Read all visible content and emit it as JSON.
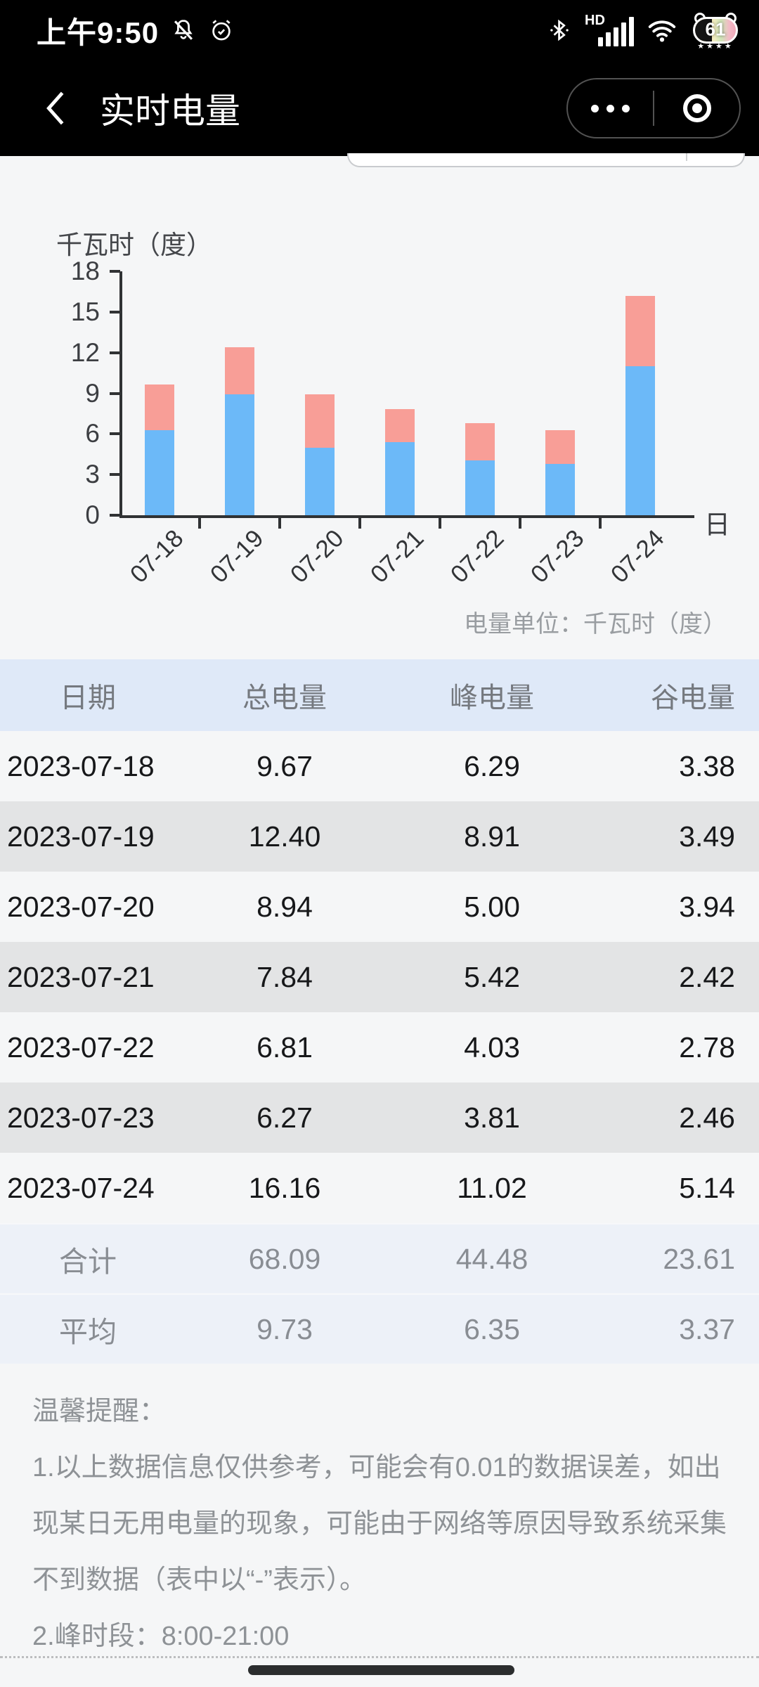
{
  "status_bar": {
    "time": "上午9:50",
    "hd_label": "HD",
    "battery_percent": "61",
    "battery_stars": "★★★★"
  },
  "nav": {
    "title": "实时电量"
  },
  "chart_data": {
    "type": "bar",
    "stacked": true,
    "title": "千瓦时（度）",
    "xlabel": "日",
    "categories": [
      "07-18",
      "07-19",
      "07-20",
      "07-21",
      "07-22",
      "07-23",
      "07-24"
    ],
    "series": [
      {
        "name": "峰电量",
        "color": "#6cb9f8",
        "values": [
          6.29,
          8.91,
          5.0,
          5.42,
          4.03,
          3.81,
          11.02
        ]
      },
      {
        "name": "谷电量",
        "color": "#f89e97",
        "values": [
          3.38,
          3.49,
          3.94,
          2.42,
          2.78,
          2.46,
          5.14
        ]
      }
    ],
    "ylim": [
      0,
      18
    ],
    "yticks": [
      0,
      3,
      6,
      9,
      12,
      15,
      18
    ],
    "grid": false,
    "legend_position": "none"
  },
  "unit_note": "电量单位：千瓦时（度）",
  "table": {
    "headers": [
      "日期",
      "总电量",
      "峰电量",
      "谷电量"
    ],
    "rows": [
      [
        "2023-07-18",
        "9.67",
        "6.29",
        "3.38"
      ],
      [
        "2023-07-19",
        "12.40",
        "8.91",
        "3.49"
      ],
      [
        "2023-07-20",
        "8.94",
        "5.00",
        "3.94"
      ],
      [
        "2023-07-21",
        "7.84",
        "5.42",
        "2.42"
      ],
      [
        "2023-07-22",
        "6.81",
        "4.03",
        "2.78"
      ],
      [
        "2023-07-23",
        "6.27",
        "3.81",
        "2.46"
      ],
      [
        "2023-07-24",
        "16.16",
        "11.02",
        "5.14"
      ]
    ],
    "summary": [
      [
        "合计",
        "68.09",
        "44.48",
        "23.61"
      ],
      [
        "平均",
        "9.73",
        "6.35",
        "3.37"
      ]
    ]
  },
  "notice": {
    "title": "温馨提醒：",
    "items": [
      "1.以上数据信息仅供参考，可能会有0.01的数据误差，如出现某日无用电量的现象，可能由于网络等原因导致系统采集不到数据（表中以“-”表示）。",
      "2.峰时段：8:00-21:00"
    ]
  },
  "colors": {
    "bar_peak": "#6cb9f8",
    "bar_valley": "#f89e97",
    "header_bg": "#dfe9f8",
    "row_alt_bg": "#e3e4e5",
    "summary_bg": "#edf1f8",
    "nav_bg": "#000000",
    "page_bg": "#f5f6f7"
  }
}
